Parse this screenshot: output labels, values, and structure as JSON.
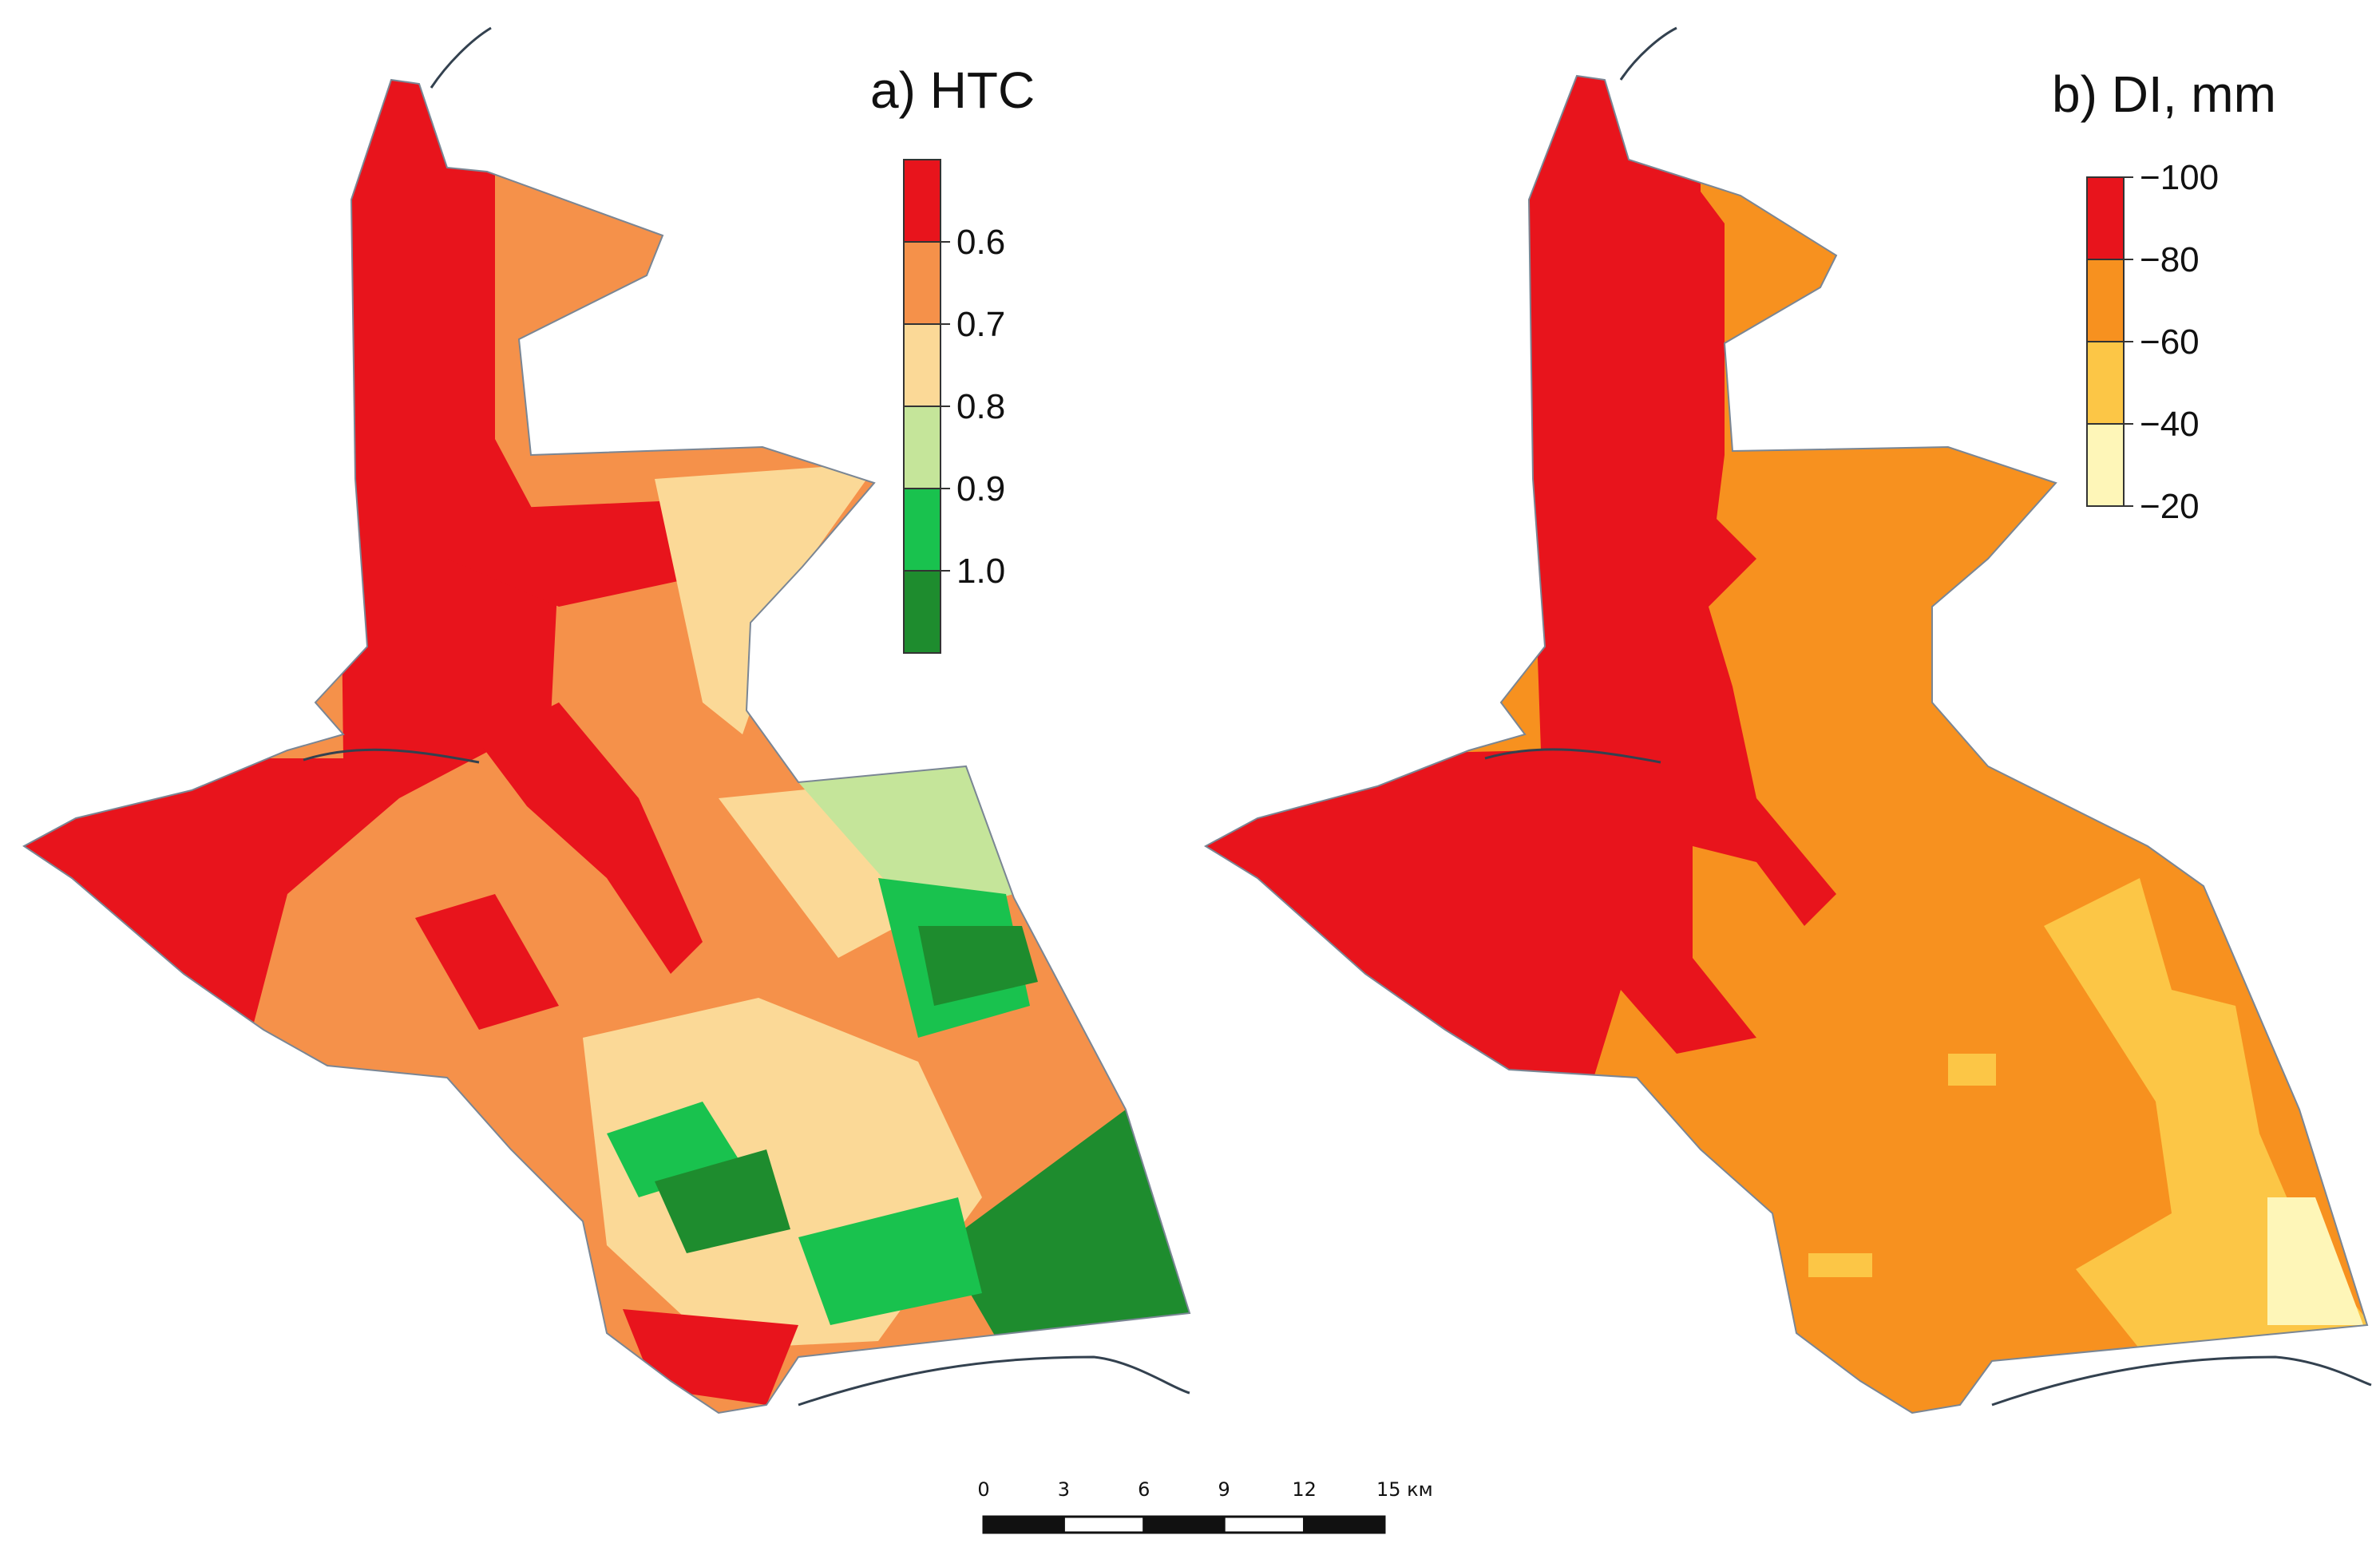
{
  "panels": [
    {
      "title": "a) HTC",
      "legend": {
        "colors": [
          "#E8141C",
          "#F5914A",
          "#FBD997",
          "#C5E59A",
          "#19C24E",
          "#1E8C2E"
        ],
        "labels": [
          "0.6",
          "0.7",
          "0.8",
          "0.9",
          "1.0"
        ]
      }
    },
    {
      "title": "b) DI, mm",
      "legend": {
        "colors": [
          "#E8141C",
          "#F7911F",
          "#FCC646",
          "#FEF6B8"
        ],
        "labels": [
          "−100",
          "−80",
          "−60",
          "−40",
          "−20"
        ]
      }
    }
  ],
  "scale_bar": {
    "ticks": [
      "0",
      "3",
      "6",
      "9",
      "12",
      "15 км"
    ]
  }
}
